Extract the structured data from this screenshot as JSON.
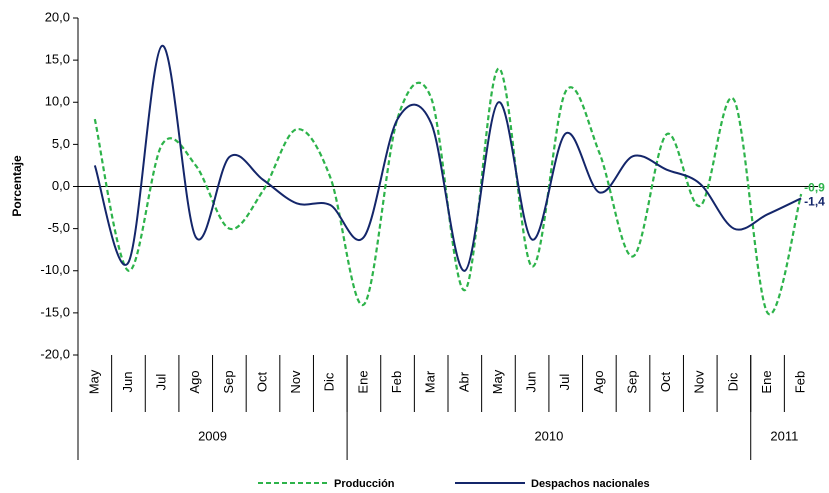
{
  "chart_data": {
    "type": "line",
    "y_label": "Porcentaje",
    "categories": [
      "May",
      "Jun",
      "Jul",
      "Ago",
      "Sep",
      "Oct",
      "Nov",
      "Dic",
      "Ene",
      "Feb",
      "Mar",
      "Abr",
      "May",
      "Jun",
      "Jul",
      "Ago",
      "Sep",
      "Oct",
      "Nov",
      "Dic",
      "Ene",
      "Feb"
    ],
    "year_groups": [
      {
        "label": "2009",
        "span": 8
      },
      {
        "label": "2010",
        "span": 12
      },
      {
        "label": "2011",
        "span": 2
      }
    ],
    "ylim": [
      -20,
      20
    ],
    "yticks": [
      {
        "value": -20,
        "label": "-20,0"
      },
      {
        "value": -15,
        "label": "-15,0"
      },
      {
        "value": -10,
        "label": "-10,0"
      },
      {
        "value": -5,
        "label": "-5,0"
      },
      {
        "value": 0,
        "label": "0,0"
      },
      {
        "value": 5,
        "label": "5,0"
      },
      {
        "value": 10,
        "label": "10,0"
      },
      {
        "value": 15,
        "label": "15,0"
      },
      {
        "value": 20,
        "label": "20,0"
      }
    ],
    "grid": false,
    "smooth": true,
    "legend": "bottom",
    "series": [
      {
        "name": "Producción",
        "color": "#2db34a",
        "dashed": true,
        "values": [
          8,
          -10,
          5,
          2.5,
          -5,
          -0.5,
          6.8,
          1.1,
          -14,
          8.1,
          10.5,
          -12.3,
          14,
          -9.5,
          11.3,
          4,
          -8.3,
          6.2,
          -2.3,
          10.3,
          -15,
          -0.9
        ],
        "value_labels": [
          null,
          null,
          null,
          null,
          null,
          null,
          null,
          null,
          null,
          null,
          null,
          null,
          null,
          null,
          null,
          null,
          null,
          null,
          null,
          null,
          null,
          "-0,9"
        ]
      },
      {
        "name": "Despachos nacionales",
        "color": "#14266a",
        "dashed": false,
        "values": [
          2.5,
          -9,
          16.7,
          -6,
          3.5,
          0.8,
          -2,
          -2.2,
          -6,
          8,
          7.5,
          -10,
          10,
          -6.3,
          6.3,
          -0.7,
          3.6,
          2,
          0.3,
          -5,
          -3.3,
          -1.4
        ],
        "value_labels": [
          null,
          null,
          null,
          null,
          null,
          null,
          null,
          null,
          null,
          null,
          null,
          null,
          null,
          null,
          null,
          null,
          null,
          null,
          null,
          null,
          null,
          "-1,4"
        ]
      }
    ]
  }
}
